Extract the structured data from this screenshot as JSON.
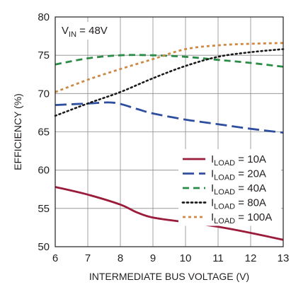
{
  "chart_data": {
    "type": "line",
    "xlabel": "INTERMEDIATE BUS VOLTAGE (V)",
    "ylabel": "EFFICIENCY (%)",
    "xlim": [
      6,
      13
    ],
    "ylim": [
      50,
      80
    ],
    "xticks": [
      6,
      7,
      8,
      9,
      10,
      11,
      12,
      13
    ],
    "yticks": [
      50,
      55,
      60,
      65,
      70,
      75,
      80
    ],
    "grid": true,
    "legend_position": "bottom-right",
    "annotation": {
      "base": "V",
      "sub": "IN",
      "suffix": " = 48V"
    },
    "series": [
      {
        "name": "ILOAD = 10A",
        "label_base": "I",
        "label_sub": "LOAD",
        "label_suffix": " = 10A",
        "color": "#9b1b3a",
        "style": "solid",
        "points": [
          [
            6,
            57.8
          ],
          [
            7,
            56.8
          ],
          [
            8,
            55.5
          ],
          [
            8.5,
            54.5
          ],
          [
            9,
            53.8
          ],
          [
            10,
            53.2
          ],
          [
            11,
            52.6
          ],
          [
            12,
            51.8
          ],
          [
            13,
            50.9
          ]
        ]
      },
      {
        "name": "ILOAD = 20A",
        "label_base": "I",
        "label_sub": "LOAD",
        "label_suffix": " = 20A",
        "color": "#2e4fa0",
        "style": "longdash",
        "points": [
          [
            6,
            68.5
          ],
          [
            7,
            68.7
          ],
          [
            7.8,
            68.8
          ],
          [
            8.5,
            68.0
          ],
          [
            9,
            67.4
          ],
          [
            10,
            66.6
          ],
          [
            11,
            66.0
          ],
          [
            12,
            65.4
          ],
          [
            13,
            64.9
          ]
        ]
      },
      {
        "name": "ILOAD = 40A",
        "label_base": "I",
        "label_sub": "LOAD",
        "label_suffix": " = 40A",
        "color": "#2a8c45",
        "style": "dash",
        "points": [
          [
            6,
            73.8
          ],
          [
            7,
            74.6
          ],
          [
            8,
            75.0
          ],
          [
            9,
            75.0
          ],
          [
            10,
            74.8
          ],
          [
            11,
            74.4
          ],
          [
            12,
            74.0
          ],
          [
            13,
            73.5
          ]
        ]
      },
      {
        "name": "ILOAD = 80A",
        "label_base": "I",
        "label_sub": "LOAD",
        "label_suffix": " = 80A",
        "color": "#1a1a1a",
        "style": "dot",
        "points": [
          [
            6,
            67.1
          ],
          [
            7,
            68.7
          ],
          [
            8,
            70.2
          ],
          [
            9,
            72.0
          ],
          [
            10,
            73.6
          ],
          [
            11,
            74.8
          ],
          [
            12,
            75.4
          ],
          [
            13,
            75.8
          ]
        ]
      },
      {
        "name": "ILOAD = 100A",
        "label_base": "I",
        "label_sub": "LOAD",
        "label_suffix": " = 100A",
        "color": "#cc8a45",
        "style": "shortdash",
        "points": [
          [
            6,
            70.2
          ],
          [
            7,
            71.8
          ],
          [
            8,
            73.2
          ],
          [
            9,
            74.5
          ],
          [
            10,
            75.8
          ],
          [
            11,
            76.3
          ],
          [
            12,
            76.5
          ],
          [
            13,
            76.6
          ]
        ]
      }
    ]
  }
}
